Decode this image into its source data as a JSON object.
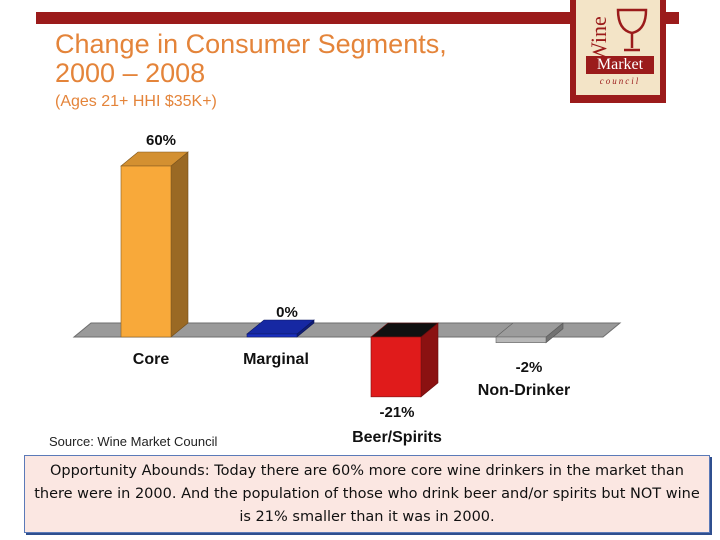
{
  "logo": {
    "word_top": "Wine",
    "word_band": "Market",
    "word_bottom": "council"
  },
  "title": "Change in Consumer Segments,\n2000 – 2008",
  "subtitle": "(Ages 21+ HHI $35K+)",
  "source": "Source: Wine Market Council",
  "callout": "Opportunity Abounds:  Today there are 60% more core wine drinkers in the market than there were in 2000. And the population of those who drink beer and/or spirits but NOT wine is 21% smaller than it was in 2000.",
  "chart_data": {
    "type": "bar",
    "categories": [
      "Core",
      "Marginal",
      "Beer/Spirits",
      "Non-Drinker"
    ],
    "values": [
      60,
      0,
      -21,
      -2
    ],
    "value_labels": [
      "60%",
      "0%",
      "-21%",
      "-2%"
    ],
    "colors": [
      "#f8a93a",
      "#1a2fc0",
      "#e01b1b",
      "#b8b8b8"
    ],
    "ylim": [
      -25,
      65
    ],
    "grid": false,
    "legend": "none"
  }
}
